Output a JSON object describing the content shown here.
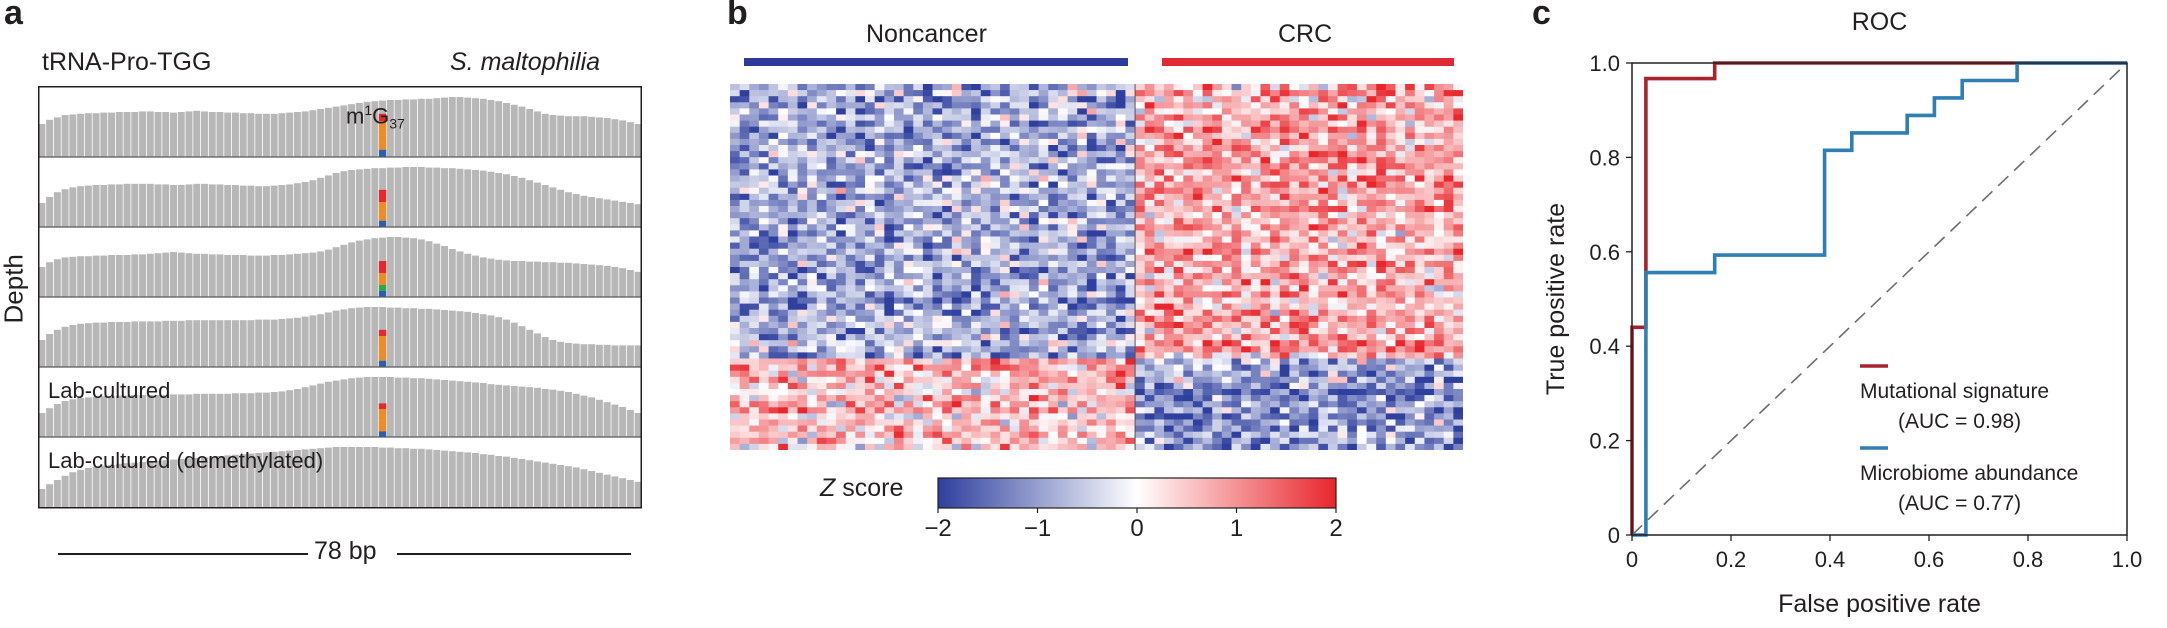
{
  "panels": {
    "a": {
      "label": "a",
      "gene": "tRNA-Pro-TGG",
      "species": "S. maltophilia",
      "ylabel": "Depth",
      "mod_base": "m",
      "mod_sup": "1",
      "mod_g": "G",
      "mod_sub": "37",
      "track_labels": [
        "",
        "",
        "",
        "",
        "Lab-cultured",
        "Lab-cultured (demethylated)"
      ],
      "length_label": "78 bp"
    },
    "b": {
      "label": "b",
      "groups": [
        {
          "name": "Noncancer",
          "color": "#2b3a9c"
        },
        {
          "name": "CRC",
          "color": "#e02b35"
        }
      ],
      "colorbar_title_italic": "Z",
      "colorbar_title_rest": " score",
      "colorbar_ticks": [
        "−2",
        "−1",
        "0",
        "1",
        "2"
      ],
      "colorbar_values": [
        -2,
        -1,
        0,
        1,
        2
      ],
      "colors": {
        "low": "#2e3f9e",
        "mid": "#ffffff",
        "high": "#e8262c"
      }
    },
    "c": {
      "label": "c"
    }
  },
  "chart_data": [
    {
      "type": "bar",
      "title": "tRNA-Pro-TGG",
      "subtitle": "S. maltophilia",
      "ylabel": "Depth",
      "xlabel": "78 bp",
      "profiles_relative_depth": [
        [
          0.55,
          0.62,
          0.66,
          0.7,
          0.71,
          0.72,
          0.73,
          0.73,
          0.74,
          0.74,
          0.75,
          0.75,
          0.75,
          0.76,
          0.76,
          0.75,
          0.75,
          0.74,
          0.75,
          0.76,
          0.77,
          0.76,
          0.75,
          0.75,
          0.74,
          0.74,
          0.73,
          0.73,
          0.72,
          0.72,
          0.72,
          0.73,
          0.74,
          0.75,
          0.76,
          0.78,
          0.8,
          0.82,
          0.84,
          0.86,
          0.88,
          0.9,
          0.92,
          0.93,
          0.94,
          0.95,
          0.95,
          0.96,
          0.96,
          0.97,
          0.97,
          0.98,
          0.99,
          1.0,
          1.0,
          0.99,
          0.98,
          0.97,
          0.95,
          0.93,
          0.9,
          0.87,
          0.84,
          0.8,
          0.76,
          0.72,
          0.7,
          0.69,
          0.68,
          0.68,
          0.68,
          0.67,
          0.66,
          0.65,
          0.63,
          0.61,
          0.58,
          0.55
        ],
        [
          0.4,
          0.5,
          0.58,
          0.63,
          0.66,
          0.68,
          0.69,
          0.7,
          0.7,
          0.71,
          0.71,
          0.72,
          0.72,
          0.72,
          0.72,
          0.71,
          0.71,
          0.7,
          0.7,
          0.71,
          0.72,
          0.72,
          0.71,
          0.71,
          0.7,
          0.7,
          0.69,
          0.69,
          0.68,
          0.68,
          0.69,
          0.7,
          0.71,
          0.73,
          0.75,
          0.78,
          0.82,
          0.86,
          0.9,
          0.93,
          0.95,
          0.96,
          0.97,
          0.98,
          0.98,
          0.99,
          0.99,
          1.0,
          1.0,
          1.0,
          0.99,
          0.99,
          0.98,
          0.98,
          0.97,
          0.96,
          0.95,
          0.94,
          0.92,
          0.9,
          0.88,
          0.85,
          0.82,
          0.78,
          0.74,
          0.7,
          0.66,
          0.62,
          0.58,
          0.55,
          0.52,
          0.5,
          0.48,
          0.46,
          0.44,
          0.42,
          0.4,
          0.38
        ],
        [
          0.5,
          0.58,
          0.63,
          0.66,
          0.67,
          0.68,
          0.68,
          0.69,
          0.69,
          0.7,
          0.7,
          0.7,
          0.71,
          0.71,
          0.72,
          0.73,
          0.74,
          0.75,
          0.74,
          0.73,
          0.72,
          0.72,
          0.71,
          0.71,
          0.7,
          0.7,
          0.7,
          0.69,
          0.69,
          0.69,
          0.7,
          0.7,
          0.71,
          0.72,
          0.73,
          0.74,
          0.76,
          0.79,
          0.83,
          0.87,
          0.91,
          0.94,
          0.96,
          0.98,
          0.99,
          1.0,
          1.0,
          0.99,
          0.98,
          0.96,
          0.93,
          0.89,
          0.85,
          0.8,
          0.76,
          0.72,
          0.69,
          0.66,
          0.64,
          0.62,
          0.61,
          0.6,
          0.6,
          0.59,
          0.59,
          0.58,
          0.58,
          0.57,
          0.57,
          0.56,
          0.55,
          0.54,
          0.53,
          0.52,
          0.5,
          0.48,
          0.45,
          0.42
        ],
        [
          0.45,
          0.55,
          0.62,
          0.67,
          0.7,
          0.72,
          0.73,
          0.74,
          0.74,
          0.75,
          0.75,
          0.75,
          0.76,
          0.76,
          0.76,
          0.76,
          0.77,
          0.77,
          0.77,
          0.78,
          0.78,
          0.78,
          0.78,
          0.78,
          0.78,
          0.78,
          0.78,
          0.78,
          0.79,
          0.79,
          0.79,
          0.8,
          0.81,
          0.82,
          0.84,
          0.86,
          0.88,
          0.91,
          0.94,
          0.96,
          0.98,
          0.99,
          1.0,
          1.0,
          1.0,
          0.99,
          0.99,
          0.98,
          0.98,
          0.97,
          0.97,
          0.96,
          0.95,
          0.94,
          0.93,
          0.92,
          0.9,
          0.88,
          0.86,
          0.83,
          0.79,
          0.74,
          0.68,
          0.62,
          0.56,
          0.5,
          0.45,
          0.42,
          0.4,
          0.39,
          0.38,
          0.38,
          0.37,
          0.37,
          0.36,
          0.36,
          0.36,
          0.36
        ],
        [
          0.4,
          0.48,
          0.55,
          0.6,
          0.63,
          0.65,
          0.66,
          0.67,
          0.68,
          0.68,
          0.69,
          0.69,
          0.7,
          0.7,
          0.7,
          0.7,
          0.7,
          0.71,
          0.71,
          0.71,
          0.72,
          0.72,
          0.72,
          0.72,
          0.72,
          0.73,
          0.73,
          0.73,
          0.74,
          0.74,
          0.75,
          0.76,
          0.78,
          0.8,
          0.83,
          0.86,
          0.89,
          0.92,
          0.94,
          0.96,
          0.98,
          0.99,
          1.0,
          1.0,
          1.0,
          1.0,
          0.99,
          0.99,
          0.98,
          0.98,
          0.97,
          0.96,
          0.95,
          0.94,
          0.93,
          0.92,
          0.91,
          0.9,
          0.88,
          0.87,
          0.86,
          0.85,
          0.84,
          0.83,
          0.82,
          0.8,
          0.79,
          0.77,
          0.75,
          0.72,
          0.69,
          0.66,
          0.62,
          0.58,
          0.54,
          0.5,
          0.45,
          0.4
        ],
        [
          0.3,
          0.38,
          0.45,
          0.52,
          0.58,
          0.62,
          0.65,
          0.67,
          0.69,
          0.7,
          0.72,
          0.73,
          0.74,
          0.75,
          0.76,
          0.77,
          0.78,
          0.79,
          0.8,
          0.81,
          0.82,
          0.83,
          0.84,
          0.85,
          0.86,
          0.87,
          0.88,
          0.89,
          0.9,
          0.91,
          0.92,
          0.93,
          0.94,
          0.95,
          0.96,
          0.97,
          0.98,
          0.99,
          1.0,
          1.0,
          1.0,
          1.0,
          1.0,
          1.0,
          0.99,
          0.99,
          0.98,
          0.98,
          0.97,
          0.97,
          0.96,
          0.95,
          0.94,
          0.93,
          0.92,
          0.91,
          0.9,
          0.88,
          0.87,
          0.85,
          0.84,
          0.82,
          0.8,
          0.78,
          0.76,
          0.74,
          0.72,
          0.7,
          0.68,
          0.66,
          0.63,
          0.6,
          0.57,
          0.54,
          0.51,
          0.48,
          0.45,
          0.42
        ]
      ],
      "mismatch_position_index": 44,
      "mismatch_track_fractions": [
        0.72,
        0.62,
        0.6,
        0.62,
        0.56,
        0.0
      ],
      "mismatch_colors": [
        [
          "#e8262c",
          "#f08a24",
          "#f08a24",
          "#f08a24",
          "#f08a24",
          "#2b5fad"
        ],
        [
          "#e8262c",
          "#e8262c",
          "#f08a24",
          "#f08a24",
          "#f08a24",
          "#2b5fad"
        ],
        [
          "#e8262c",
          "#e8262c",
          "#f08a24",
          "#f08a24",
          "#2aa84a",
          "#2b5fad"
        ],
        [
          "#e8262c",
          "#f08a24",
          "#f08a24",
          "#f08a24",
          "#f08a24",
          "#2b5fad"
        ],
        [
          "#e8262c",
          "#f08a24",
          "#f08a24",
          "#f08a24",
          "#f08a24",
          "#2b5fad"
        ]
      ],
      "bar_color": "#b7b7b7"
    },
    {
      "type": "heatmap",
      "groups": [
        {
          "name": "Noncancer",
          "n_columns": 42
        },
        {
          "name": "CRC",
          "n_columns": 34
        }
      ],
      "n_rows": 60,
      "row_blocks": [
        {
          "rows": 45,
          "noncancer_mean": -0.85,
          "crc_mean": 0.75
        },
        {
          "rows": 15,
          "noncancer_mean": 0.55,
          "crc_mean": -1.05
        }
      ],
      "value_range": [
        -2,
        2
      ],
      "colorbar_title": "Z score"
    },
    {
      "type": "line",
      "title": "ROC",
      "xlabel": "False positive rate",
      "ylabel": "True positive rate",
      "xlim": [
        0,
        1.0
      ],
      "ylim": [
        0,
        1.0
      ],
      "xticks": [
        "0",
        "0.2",
        "0.4",
        "0.6",
        "0.8",
        "1.0"
      ],
      "yticks": [
        "0",
        "0.2",
        "0.4",
        "0.6",
        "0.8",
        "1.0"
      ],
      "xtick_values": [
        0,
        0.2,
        0.4,
        0.6,
        0.8,
        1.0
      ],
      "ytick_values": [
        0,
        0.2,
        0.4,
        0.6,
        0.8,
        1.0
      ],
      "series": [
        {
          "name": "Mutational signature",
          "auc_label": "(AUC = 0.98)",
          "color": "#a8232e",
          "x": [
            0,
            0,
            0.028,
            0.028,
            0.167,
            0.167,
            1.0
          ],
          "y": [
            0,
            0.44,
            0.44,
            0.967,
            0.967,
            1.0,
            1.0
          ]
        },
        {
          "name": "Microbiome abundance",
          "auc_label": "(AUC = 0.77)",
          "color": "#2f7fb5",
          "x": [
            0,
            0.028,
            0.028,
            0.028,
            0.167,
            0.167,
            0.389,
            0.389,
            0.444,
            0.444,
            0.556,
            0.556,
            0.611,
            0.611,
            0.667,
            0.667,
            0.778,
            0.778,
            1.0
          ],
          "y": [
            0,
            0,
            0.078,
            0.556,
            0.556,
            0.593,
            0.593,
            0.815,
            0.815,
            0.852,
            0.852,
            0.889,
            0.889,
            0.926,
            0.926,
            0.963,
            0.963,
            1.0,
            1.0
          ]
        }
      ],
      "diagonal": true
    }
  ]
}
